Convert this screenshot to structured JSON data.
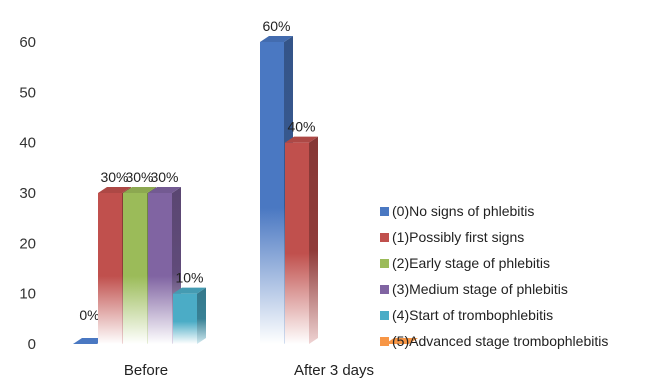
{
  "chart_data": {
    "type": "bar",
    "categories": [
      "Before",
      "After 3 days"
    ],
    "ylim": [
      0,
      60
    ],
    "yticks": [
      0,
      10,
      20,
      30,
      40,
      50,
      60
    ],
    "grid": false,
    "legend_position": "right",
    "series": [
      {
        "name": "(0)No signs of phlebitis",
        "color": "#4a78c2",
        "values": [
          0,
          60
        ],
        "labels": [
          "0%",
          "60%"
        ]
      },
      {
        "name": "(1)Possibly first signs",
        "color": "#c0504d",
        "values": [
          30,
          40
        ],
        "labels": [
          "30%",
          "40%"
        ]
      },
      {
        "name": "(2)Early stage of phlebitis",
        "color": "#9bbb59",
        "values": [
          30,
          0
        ],
        "labels": [
          "30%",
          ""
        ]
      },
      {
        "name": "(3)Medium stage of phlebitis",
        "color": "#8064a2",
        "values": [
          30,
          0
        ],
        "labels": [
          "30%",
          ""
        ]
      },
      {
        "name": "(4)Start of trombophlebitis",
        "color": "#4bacc6",
        "values": [
          10,
          0
        ],
        "labels": [
          "10%",
          ""
        ]
      },
      {
        "name": "(5)Advanced stage trombophlebitis",
        "color": "#f79646",
        "values": [
          0,
          0
        ],
        "labels": [
          "",
          ""
        ]
      }
    ]
  }
}
